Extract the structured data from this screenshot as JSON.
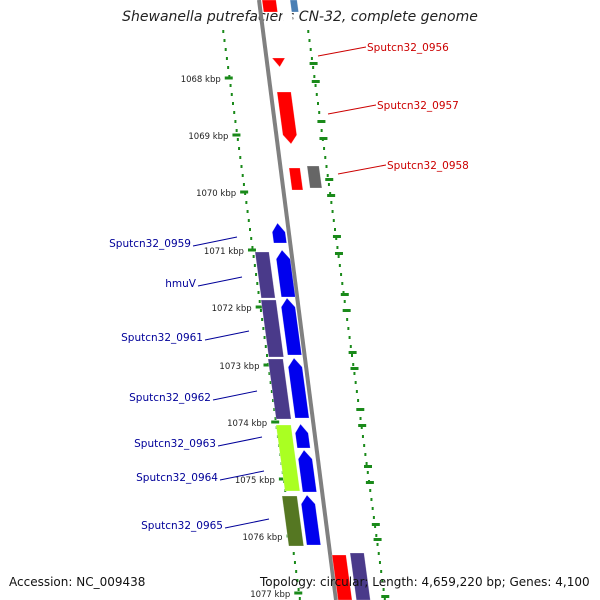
{
  "title": "Shewanella putrefaciens CN-32, complete genome",
  "accession": "Accession: NC_009438",
  "summary": "Topology: circular; Length: 4,659,220 bp; Genes: 4,100",
  "scale_labels": [
    "1068 kbp",
    "1069 kbp",
    "1070 kbp",
    "1071 kbp",
    "1072 kbp",
    "1073 kbp",
    "1074 kbp",
    "1075 kbp",
    "1076 kbp",
    "1077 kbp"
  ],
  "colors": {
    "backbone": "#808080",
    "ticks": "#1a8a1a",
    "red_gene": "#ff0000",
    "blue_gene": "#0000ee",
    "cog_purple": "#4a3a8a",
    "cog_lime": "#aaff22",
    "cog_olive": "#557722",
    "gray_gene": "#666666",
    "steel_blue": "#4a7fb5",
    "right_label": "#cc0000",
    "left_label": "#000099"
  },
  "right_labels": [
    "Sputcn32_0956",
    "Sputcn32_0957",
    "Sputcn32_0958"
  ],
  "left_labels": [
    "Sputcn32_0959",
    "hmuV",
    "Sputcn32_0961",
    "Sputcn32_0962",
    "Sputcn32_0963",
    "Sputcn32_0964",
    "Sputcn32_0965"
  ]
}
